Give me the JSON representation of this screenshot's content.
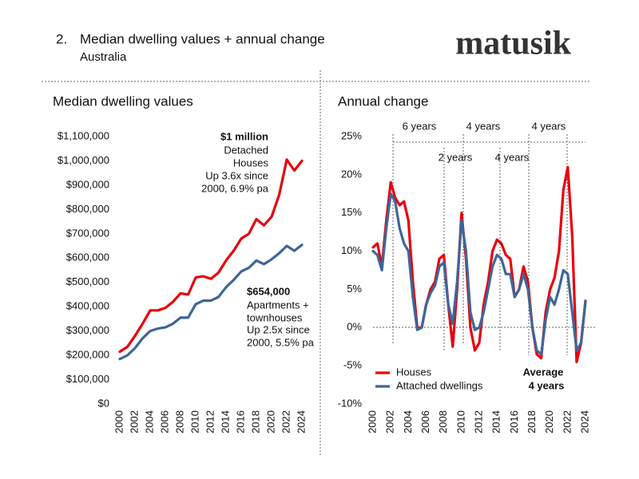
{
  "header": {
    "number": "2.",
    "title": "Median dwelling values + annual change",
    "subtitle": "Australia",
    "logo": "matusik"
  },
  "chart_data": [
    {
      "type": "line",
      "title": "Median dwelling values",
      "x": [
        2000,
        2001,
        2002,
        2003,
        2004,
        2005,
        2006,
        2007,
        2008,
        2009,
        2010,
        2011,
        2012,
        2013,
        2014,
        2015,
        2016,
        2017,
        2018,
        2019,
        2020,
        2021,
        2022,
        2023,
        2024
      ],
      "series": [
        {
          "color": "#e8000b",
          "values": [
            215000,
            235000,
            280000,
            330000,
            385000,
            385000,
            395000,
            420000,
            455000,
            450000,
            520000,
            525000,
            515000,
            540000,
            590000,
            630000,
            680000,
            700000,
            760000,
            735000,
            770000,
            860000,
            1005000,
            960000,
            1000000
          ]
        },
        {
          "color": "#3e6699",
          "values": [
            185000,
            200000,
            230000,
            270000,
            300000,
            310000,
            315000,
            330000,
            355000,
            355000,
            410000,
            425000,
            425000,
            440000,
            480000,
            510000,
            545000,
            560000,
            590000,
            575000,
            595000,
            620000,
            650000,
            630000,
            654000
          ]
        }
      ],
      "xlim": [
        2000,
        2024
      ],
      "xticks": [
        2000,
        2002,
        2004,
        2006,
        2008,
        2010,
        2012,
        2014,
        2016,
        2018,
        2020,
        2022,
        2024
      ],
      "ylim": [
        0,
        1100000
      ],
      "yticks": [
        {
          "value": 0,
          "label": "$0"
        },
        {
          "value": 100000,
          "label": "$100,000"
        },
        {
          "value": 200000,
          "label": "$200,000"
        },
        {
          "value": 300000,
          "label": "$300,000"
        },
        {
          "value": 400000,
          "label": "$400,000"
        },
        {
          "value": 500000,
          "label": "$500,000"
        },
        {
          "value": 600000,
          "label": "$600,000"
        },
        {
          "value": 700000,
          "label": "$700,000"
        },
        {
          "value": 800000,
          "label": "$800,000"
        },
        {
          "value": 900000,
          "label": "$900,000"
        },
        {
          "value": 1000000,
          "label": "$1,000,000"
        },
        {
          "value": 1100000,
          "label": "$1,100,000"
        }
      ],
      "grid": false,
      "legend": false,
      "annotations": [
        "$1 million",
        "Detached",
        "Houses",
        "Up 3.6x since",
        "2000, 6.9% pa",
        "$654,000",
        "Apartments +",
        "townhouses",
        "Up 2.5x since",
        "2000, 5.5% pa"
      ]
    },
    {
      "type": "line",
      "title": "Annual change",
      "x": [
        2000,
        2000.5,
        2001,
        2001.5,
        2002,
        2002.5,
        2003,
        2003.5,
        2004,
        2004.5,
        2005,
        2005.5,
        2006,
        2006.5,
        2007,
        2007.5,
        2008,
        2008.5,
        2009,
        2009.5,
        2010,
        2010.5,
        2011,
        2011.5,
        2012,
        2012.5,
        2013,
        2013.5,
        2014,
        2014.5,
        2015,
        2015.5,
        2016,
        2016.5,
        2017,
        2017.5,
        2018,
        2018.5,
        2019,
        2019.5,
        2020,
        2020.5,
        2021,
        2021.5,
        2022,
        2022.5,
        2023,
        2023.5,
        2024
      ],
      "series": [
        {
          "name": "Houses",
          "color": "#e8000b",
          "values": [
            10.5,
            11,
            8,
            14,
            19,
            17,
            16,
            16.5,
            14,
            6,
            0,
            0,
            3,
            5,
            6,
            9,
            9.5,
            3,
            -2.5,
            5,
            15,
            9,
            0,
            -3,
            -2,
            3,
            6,
            10,
            11.5,
            11,
            9.5,
            9,
            4,
            5,
            8,
            6,
            0,
            -3.5,
            -4,
            2,
            5,
            6.5,
            10,
            18,
            21,
            12,
            -4.5,
            -2,
            3.5
          ]
        },
        {
          "name": "Attached dwellings",
          "color": "#3e6699",
          "values": [
            10,
            9.5,
            7.5,
            13,
            17.5,
            16.5,
            13,
            11,
            10,
            4,
            -0.3,
            0,
            3,
            4.5,
            5.5,
            8,
            8.5,
            3,
            0.5,
            6,
            14,
            10,
            2,
            -0.3,
            0,
            2,
            5,
            8,
            9.5,
            9,
            7,
            7,
            4,
            5,
            7,
            5,
            0,
            -3,
            -3.5,
            1,
            4,
            3,
            5,
            7.5,
            7,
            2,
            -3,
            -2,
            3.5
          ]
        }
      ],
      "xlim": [
        2000,
        2024
      ],
      "xticks": [
        2000,
        2002,
        2004,
        2006,
        2008,
        2010,
        2012,
        2014,
        2016,
        2018,
        2020,
        2022,
        2024
      ],
      "ylim": [
        -10,
        25
      ],
      "yticks": [
        {
          "value": -10,
          "label": "-10%"
        },
        {
          "value": -5,
          "label": "-5%"
        },
        {
          "value": 0,
          "label": "0%"
        },
        {
          "value": 5,
          "label": "5%"
        },
        {
          "value": 10,
          "label": "10%"
        },
        {
          "value": 15,
          "label": "15%"
        },
        {
          "value": 20,
          "label": "20%"
        },
        {
          "value": 25,
          "label": "25%"
        }
      ],
      "grid": false,
      "legend": true,
      "legend_loc": "lower left",
      "annotations": [
        "6 years",
        "4 years",
        "4 years",
        "2 years",
        "4 years",
        "Average",
        "4 years"
      ]
    }
  ]
}
